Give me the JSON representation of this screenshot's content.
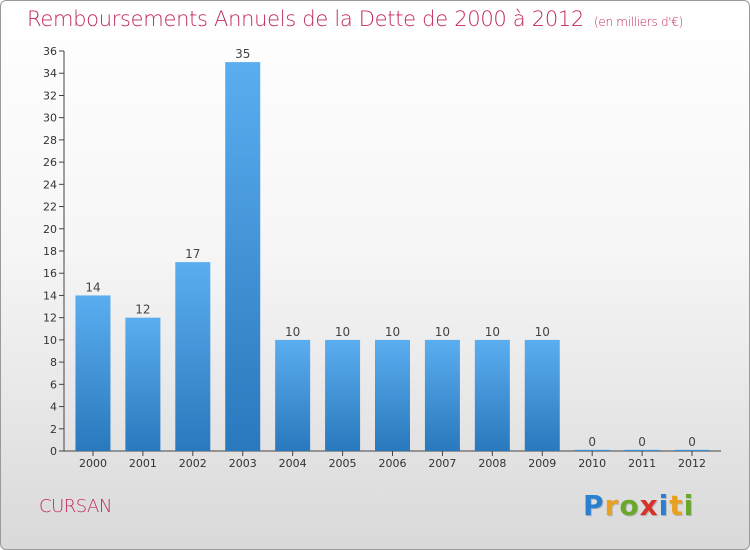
{
  "title": "Remboursements Annuels de la Dette de 2000 à 2012",
  "subtitle": "(en milliers d'€)",
  "commune": "CURSAN",
  "logo": {
    "letters": [
      "P",
      "r",
      "o",
      "x",
      "i",
      "t",
      "i"
    ],
    "colors": [
      "#2a7fd0",
      "#e8a020",
      "#6aa82c",
      "#d8332a",
      "#2a7fd0",
      "#e8a020",
      "#6aa82c"
    ]
  },
  "colors": {
    "bar_top": "#5aaef0",
    "bar_bottom": "#2a78bd",
    "title": "#c0285f"
  },
  "chart_data": {
    "type": "bar",
    "categories": [
      "2000",
      "2001",
      "2002",
      "2003",
      "2004",
      "2005",
      "2006",
      "2007",
      "2008",
      "2009",
      "2010",
      "2011",
      "2012"
    ],
    "values": [
      14,
      12,
      17,
      35,
      10,
      10,
      10,
      10,
      10,
      10,
      0,
      0,
      0
    ],
    "data_labels": [
      "14",
      "12",
      "17",
      "35",
      "10",
      "10",
      "10",
      "10",
      "10",
      "10",
      "0",
      "0",
      "0"
    ],
    "y_ticks": [
      "0",
      "2",
      "4",
      "6",
      "8",
      "10",
      "12",
      "14",
      "16",
      "18",
      "20",
      "22",
      "24",
      "26",
      "28",
      "30",
      "32",
      "34",
      "36"
    ],
    "ylim": [
      0,
      36
    ],
    "grid": false,
    "legend": "none"
  }
}
